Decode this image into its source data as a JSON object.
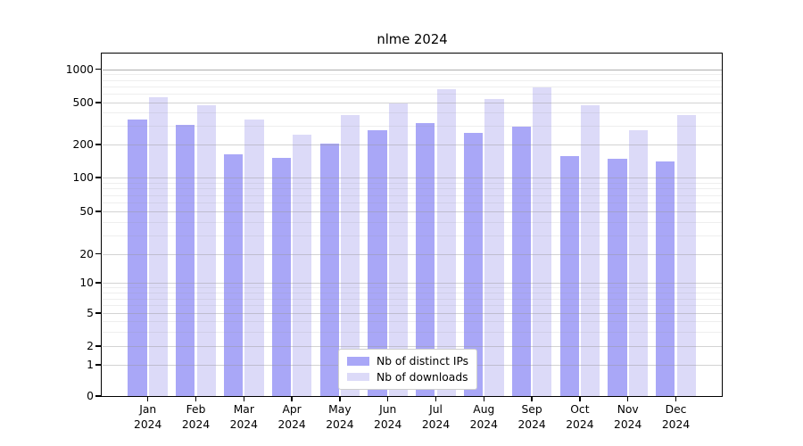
{
  "title": "nlme 2024",
  "chart_data": {
    "type": "bar",
    "title": "nlme 2024",
    "subtitle": "",
    "xlabel": "",
    "ylabel": "",
    "months": [
      "Jan",
      "Feb",
      "Mar",
      "Apr",
      "May",
      "Jun",
      "Jul",
      "Aug",
      "Sep",
      "Oct",
      "Nov",
      "Dec"
    ],
    "year": "2024",
    "series": [
      {
        "name": "Nb of distinct IPs",
        "color": "#a9a7f7",
        "values": [
          348,
          305,
          162,
          152,
          204,
          275,
          320,
          256,
          293,
          158,
          147,
          139
        ]
      },
      {
        "name": "Nb of downloads",
        "color": "#dcdaf8",
        "values": [
          555,
          475,
          345,
          250,
          380,
          495,
          665,
          540,
          690,
          470,
          275,
          380
        ]
      }
    ],
    "y_axis": {
      "scale": "log-like (0 then log ticks)",
      "ticks": [
        0,
        1,
        2,
        5,
        10,
        20,
        50,
        100,
        200,
        500,
        1000
      ],
      "tick_labels": [
        "0",
        "1",
        "2",
        "5",
        "10",
        "20",
        "50",
        "100",
        "200",
        "500",
        "1000"
      ],
      "minor_gridlines": [
        3,
        4,
        6,
        7,
        8,
        9,
        30,
        40,
        60,
        70,
        80,
        90,
        300,
        400,
        600,
        700,
        800,
        900
      ],
      "range": [
        0,
        1400
      ]
    },
    "grid": true,
    "grid_over_bars": true,
    "legend_position": "bottom-center",
    "colors": {
      "bar_dark": "#a9a7f7",
      "bar_light": "#dcdaf8",
      "axis": "#000000",
      "background": "#ffffff"
    }
  }
}
